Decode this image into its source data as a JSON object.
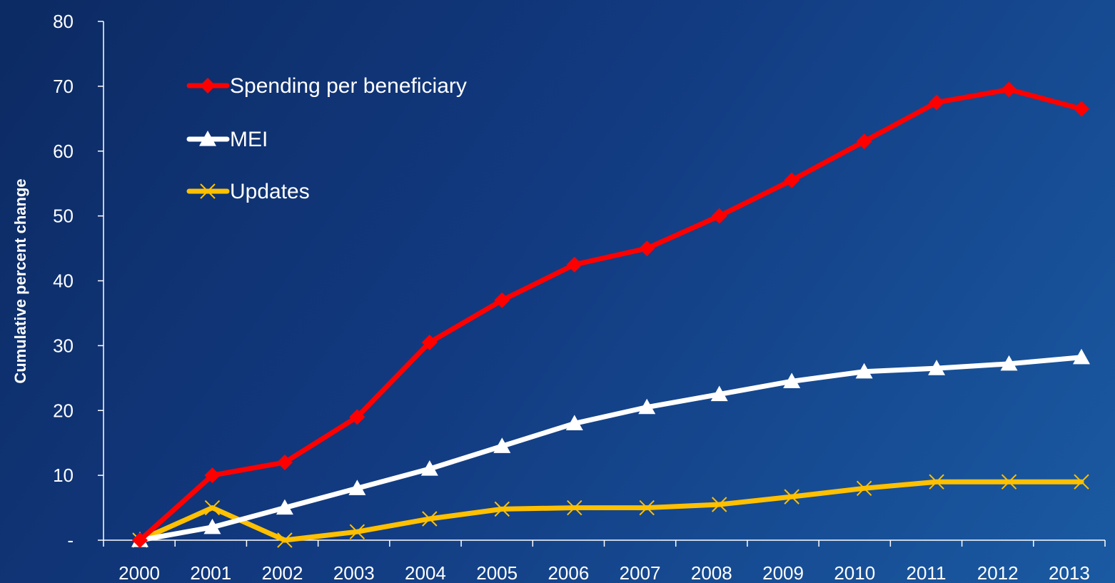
{
  "chart_data": {
    "type": "line",
    "title": "",
    "xlabel": "",
    "ylabel": "Cumulative percent change",
    "categories": [
      "2000",
      "2001",
      "2002",
      "2003",
      "2004",
      "2005",
      "2006",
      "2007",
      "2008",
      "2009",
      "2010",
      "2011",
      "2012",
      "2013"
    ],
    "y_tick_labels": [
      "-",
      "10",
      "20",
      "30",
      "40",
      "50",
      "60",
      "70",
      "80"
    ],
    "ylim": [
      0,
      80
    ],
    "grid": false,
    "legend_position": "top-left",
    "series": [
      {
        "name": "Spending per beneficiary",
        "color": "#ff0000",
        "marker": "diamond",
        "values": [
          0,
          10,
          12,
          19,
          30.5,
          37,
          42.5,
          45,
          50,
          55.5,
          61.5,
          67.5,
          69.5,
          66.5
        ]
      },
      {
        "name": "MEI",
        "color": "#ffffff",
        "marker": "triangle",
        "values": [
          0,
          2,
          5,
          8,
          11,
          14.5,
          18,
          20.5,
          22.5,
          24.5,
          26,
          26.5,
          27.2,
          28.2
        ]
      },
      {
        "name": "Updates",
        "color": "#ffc000",
        "marker": "x",
        "values": [
          0,
          5,
          0,
          1.3,
          3.3,
          4.8,
          5,
          5,
          5.5,
          6.7,
          8,
          9,
          9,
          9
        ]
      }
    ]
  }
}
